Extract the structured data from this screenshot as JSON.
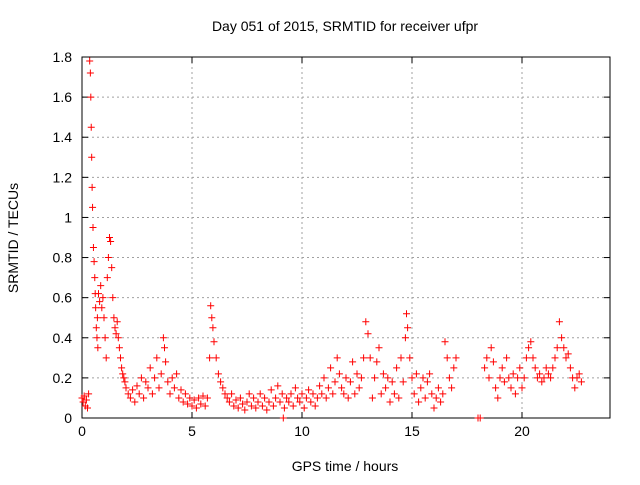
{
  "chart_data": {
    "type": "scatter",
    "title": "Day 051 of 2015, SRMTID for receiver ufpr",
    "xlabel": "GPS time / hours",
    "ylabel": "SRMTID / TECUs",
    "xlim": [
      0,
      24
    ],
    "ylim": [
      0,
      1.8
    ],
    "xticks": [
      0,
      5,
      10,
      15,
      20
    ],
    "xtick_labels": [
      "0",
      "5",
      "10",
      "15",
      "20"
    ],
    "yticks": [
      0,
      0.2,
      0.4,
      0.6,
      0.8,
      1.0,
      1.2,
      1.4,
      1.6,
      1.8
    ],
    "ytick_labels": [
      "0",
      "0.2",
      "0.4",
      "0.6",
      "0.8",
      "1",
      "1.2",
      "1.4",
      "1.6",
      "1.8"
    ],
    "grid": true,
    "marker": "+",
    "series": [
      {
        "name": "SRMTID",
        "color": "#ff0000",
        "points": [
          [
            0.0,
            0.1
          ],
          [
            0.05,
            0.08
          ],
          [
            0.1,
            0.11
          ],
          [
            0.15,
            0.06
          ],
          [
            0.2,
            0.09
          ],
          [
            0.25,
            0.05
          ],
          [
            0.3,
            0.12
          ],
          [
            0.35,
            1.78
          ],
          [
            0.38,
            1.72
          ],
          [
            0.4,
            1.6
          ],
          [
            0.42,
            1.45
          ],
          [
            0.44,
            1.3
          ],
          [
            0.46,
            1.15
          ],
          [
            0.48,
            1.05
          ],
          [
            0.5,
            0.95
          ],
          [
            0.52,
            0.85
          ],
          [
            0.55,
            0.78
          ],
          [
            0.58,
            0.7
          ],
          [
            0.6,
            0.62
          ],
          [
            0.62,
            0.55
          ],
          [
            0.65,
            0.45
          ],
          [
            0.68,
            0.4
          ],
          [
            0.7,
            0.5
          ],
          [
            0.72,
            0.35
          ],
          [
            0.75,
            0.62
          ],
          [
            0.8,
            0.58
          ],
          [
            0.85,
            0.66
          ],
          [
            0.9,
            0.55
          ],
          [
            0.95,
            0.6
          ],
          [
            1.0,
            0.5
          ],
          [
            1.05,
            0.4
          ],
          [
            1.1,
            0.3
          ],
          [
            1.15,
            0.7
          ],
          [
            1.2,
            0.8
          ],
          [
            1.25,
            0.9
          ],
          [
            1.3,
            0.88
          ],
          [
            1.35,
            0.75
          ],
          [
            1.4,
            0.6
          ],
          [
            1.45,
            0.5
          ],
          [
            1.5,
            0.45
          ],
          [
            1.55,
            0.42
          ],
          [
            1.6,
            0.48
          ],
          [
            1.65,
            0.4
          ],
          [
            1.7,
            0.35
          ],
          [
            1.75,
            0.3
          ],
          [
            1.8,
            0.25
          ],
          [
            1.85,
            0.22
          ],
          [
            1.9,
            0.2
          ],
          [
            1.95,
            0.18
          ],
          [
            2.0,
            0.15
          ],
          [
            2.1,
            0.12
          ],
          [
            2.2,
            0.1
          ],
          [
            2.3,
            0.14
          ],
          [
            2.4,
            0.08
          ],
          [
            2.5,
            0.16
          ],
          [
            2.6,
            0.12
          ],
          [
            2.7,
            0.2
          ],
          [
            2.8,
            0.1
          ],
          [
            2.9,
            0.18
          ],
          [
            3.0,
            0.15
          ],
          [
            3.1,
            0.25
          ],
          [
            3.2,
            0.12
          ],
          [
            3.3,
            0.2
          ],
          [
            3.4,
            0.3
          ],
          [
            3.5,
            0.15
          ],
          [
            3.6,
            0.22
          ],
          [
            3.7,
            0.4
          ],
          [
            3.75,
            0.35
          ],
          [
            3.8,
            0.28
          ],
          [
            3.9,
            0.18
          ],
          [
            4.0,
            0.12
          ],
          [
            4.1,
            0.2
          ],
          [
            4.2,
            0.15
          ],
          [
            4.3,
            0.22
          ],
          [
            4.4,
            0.1
          ],
          [
            4.5,
            0.14
          ],
          [
            4.6,
            0.08
          ],
          [
            4.7,
            0.12
          ],
          [
            4.8,
            0.07
          ],
          [
            4.9,
            0.1
          ],
          [
            5.0,
            0.06
          ],
          [
            5.1,
            0.09
          ],
          [
            5.2,
            0.05
          ],
          [
            5.3,
            0.1
          ],
          [
            5.4,
            0.07
          ],
          [
            5.5,
            0.11
          ],
          [
            5.6,
            0.06
          ],
          [
            5.7,
            0.1
          ],
          [
            5.8,
            0.3
          ],
          [
            5.85,
            0.56
          ],
          [
            5.9,
            0.5
          ],
          [
            5.95,
            0.45
          ],
          [
            6.0,
            0.38
          ],
          [
            6.1,
            0.3
          ],
          [
            6.2,
            0.22
          ],
          [
            6.3,
            0.18
          ],
          [
            6.4,
            0.15
          ],
          [
            6.5,
            0.12
          ],
          [
            6.6,
            0.1
          ],
          [
            6.7,
            0.08
          ],
          [
            6.8,
            0.12
          ],
          [
            6.9,
            0.06
          ],
          [
            7.0,
            0.09
          ],
          [
            7.1,
            0.05
          ],
          [
            7.2,
            0.1
          ],
          [
            7.3,
            0.07
          ],
          [
            7.4,
            0.04
          ],
          [
            7.5,
            0.08
          ],
          [
            7.6,
            0.12
          ],
          [
            7.7,
            0.06
          ],
          [
            7.8,
            0.1
          ],
          [
            7.9,
            0.05
          ],
          [
            8.0,
            0.08
          ],
          [
            8.1,
            0.12
          ],
          [
            8.2,
            0.06
          ],
          [
            8.3,
            0.1
          ],
          [
            8.4,
            0.04
          ],
          [
            8.5,
            0.08
          ],
          [
            8.6,
            0.14
          ],
          [
            8.7,
            0.06
          ],
          [
            8.8,
            0.1
          ],
          [
            8.9,
            0.16
          ],
          [
            9.0,
            0.08
          ],
          [
            9.1,
            0.12
          ],
          [
            9.15,
            0.0
          ],
          [
            9.2,
            0.05
          ],
          [
            9.3,
            0.1
          ],
          [
            9.4,
            0.08
          ],
          [
            9.5,
            0.12
          ],
          [
            9.6,
            0.06
          ],
          [
            9.7,
            0.15
          ],
          [
            9.8,
            0.1
          ],
          [
            9.9,
            0.08
          ],
          [
            10.0,
            0.12
          ],
          [
            10.1,
            0.05
          ],
          [
            10.2,
            0.1
          ],
          [
            10.3,
            0.14
          ],
          [
            10.4,
            0.08
          ],
          [
            10.5,
            0.12
          ],
          [
            10.6,
            0.06
          ],
          [
            10.7,
            0.1
          ],
          [
            10.8,
            0.16
          ],
          [
            10.9,
            0.12
          ],
          [
            11.0,
            0.2
          ],
          [
            11.1,
            0.1
          ],
          [
            11.2,
            0.15
          ],
          [
            11.3,
            0.25
          ],
          [
            11.4,
            0.12
          ],
          [
            11.5,
            0.18
          ],
          [
            11.6,
            0.3
          ],
          [
            11.7,
            0.22
          ],
          [
            11.8,
            0.15
          ],
          [
            11.9,
            0.12
          ],
          [
            12.0,
            0.2
          ],
          [
            12.1,
            0.1
          ],
          [
            12.2,
            0.18
          ],
          [
            12.3,
            0.28
          ],
          [
            12.4,
            0.12
          ],
          [
            12.5,
            0.22
          ],
          [
            12.6,
            0.15
          ],
          [
            12.7,
            0.2
          ],
          [
            12.8,
            0.3
          ],
          [
            12.9,
            0.48
          ],
          [
            13.0,
            0.42
          ],
          [
            13.1,
            0.3
          ],
          [
            13.2,
            0.1
          ],
          [
            13.3,
            0.2
          ],
          [
            13.4,
            0.28
          ],
          [
            13.5,
            0.35
          ],
          [
            13.6,
            0.12
          ],
          [
            13.7,
            0.22
          ],
          [
            13.8,
            0.15
          ],
          [
            13.9,
            0.2
          ],
          [
            14.0,
            0.08
          ],
          [
            14.1,
            0.18
          ],
          [
            14.2,
            0.12
          ],
          [
            14.3,
            0.25
          ],
          [
            14.4,
            0.1
          ],
          [
            14.5,
            0.3
          ],
          [
            14.6,
            0.18
          ],
          [
            14.7,
            0.4
          ],
          [
            14.75,
            0.52
          ],
          [
            14.8,
            0.45
          ],
          [
            14.9,
            0.3
          ],
          [
            15.0,
            0.2
          ],
          [
            15.1,
            0.12
          ],
          [
            15.2,
            0.22
          ],
          [
            15.3,
            0.08
          ],
          [
            15.4,
            0.15
          ],
          [
            15.5,
            0.2
          ],
          [
            15.6,
            0.1
          ],
          [
            15.7,
            0.18
          ],
          [
            15.8,
            0.22
          ],
          [
            15.9,
            0.12
          ],
          [
            16.0,
            0.05
          ],
          [
            16.1,
            0.1
          ],
          [
            16.2,
            0.15
          ],
          [
            16.3,
            0.08
          ],
          [
            16.4,
            0.12
          ],
          [
            16.5,
            0.38
          ],
          [
            16.6,
            0.3
          ],
          [
            16.7,
            0.2
          ],
          [
            16.8,
            0.15
          ],
          [
            16.9,
            0.25
          ],
          [
            17.0,
            0.3
          ],
          [
            18.0,
            0.0
          ],
          [
            18.1,
            0.0
          ],
          [
            18.3,
            0.25
          ],
          [
            18.4,
            0.3
          ],
          [
            18.5,
            0.2
          ],
          [
            18.6,
            0.35
          ],
          [
            18.7,
            0.28
          ],
          [
            18.8,
            0.15
          ],
          [
            18.9,
            0.1
          ],
          [
            19.0,
            0.2
          ],
          [
            19.1,
            0.25
          ],
          [
            19.2,
            0.18
          ],
          [
            19.3,
            0.3
          ],
          [
            19.4,
            0.2
          ],
          [
            19.5,
            0.15
          ],
          [
            19.6,
            0.22
          ],
          [
            19.7,
            0.12
          ],
          [
            19.8,
            0.2
          ],
          [
            19.9,
            0.25
          ],
          [
            20.0,
            0.15
          ],
          [
            20.1,
            0.2
          ],
          [
            20.2,
            0.3
          ],
          [
            20.3,
            0.35
          ],
          [
            20.4,
            0.38
          ],
          [
            20.5,
            0.3
          ],
          [
            20.6,
            0.25
          ],
          [
            20.7,
            0.2
          ],
          [
            20.8,
            0.22
          ],
          [
            20.9,
            0.18
          ],
          [
            21.0,
            0.2
          ],
          [
            21.1,
            0.25
          ],
          [
            21.2,
            0.22
          ],
          [
            21.3,
            0.2
          ],
          [
            21.4,
            0.25
          ],
          [
            21.5,
            0.3
          ],
          [
            21.6,
            0.35
          ],
          [
            21.7,
            0.48
          ],
          [
            21.8,
            0.4
          ],
          [
            21.9,
            0.35
          ],
          [
            22.0,
            0.3
          ],
          [
            22.1,
            0.32
          ],
          [
            22.2,
            0.25
          ],
          [
            22.3,
            0.2
          ],
          [
            22.4,
            0.15
          ],
          [
            22.5,
            0.2
          ],
          [
            22.6,
            0.22
          ],
          [
            22.7,
            0.18
          ]
        ]
      }
    ]
  }
}
